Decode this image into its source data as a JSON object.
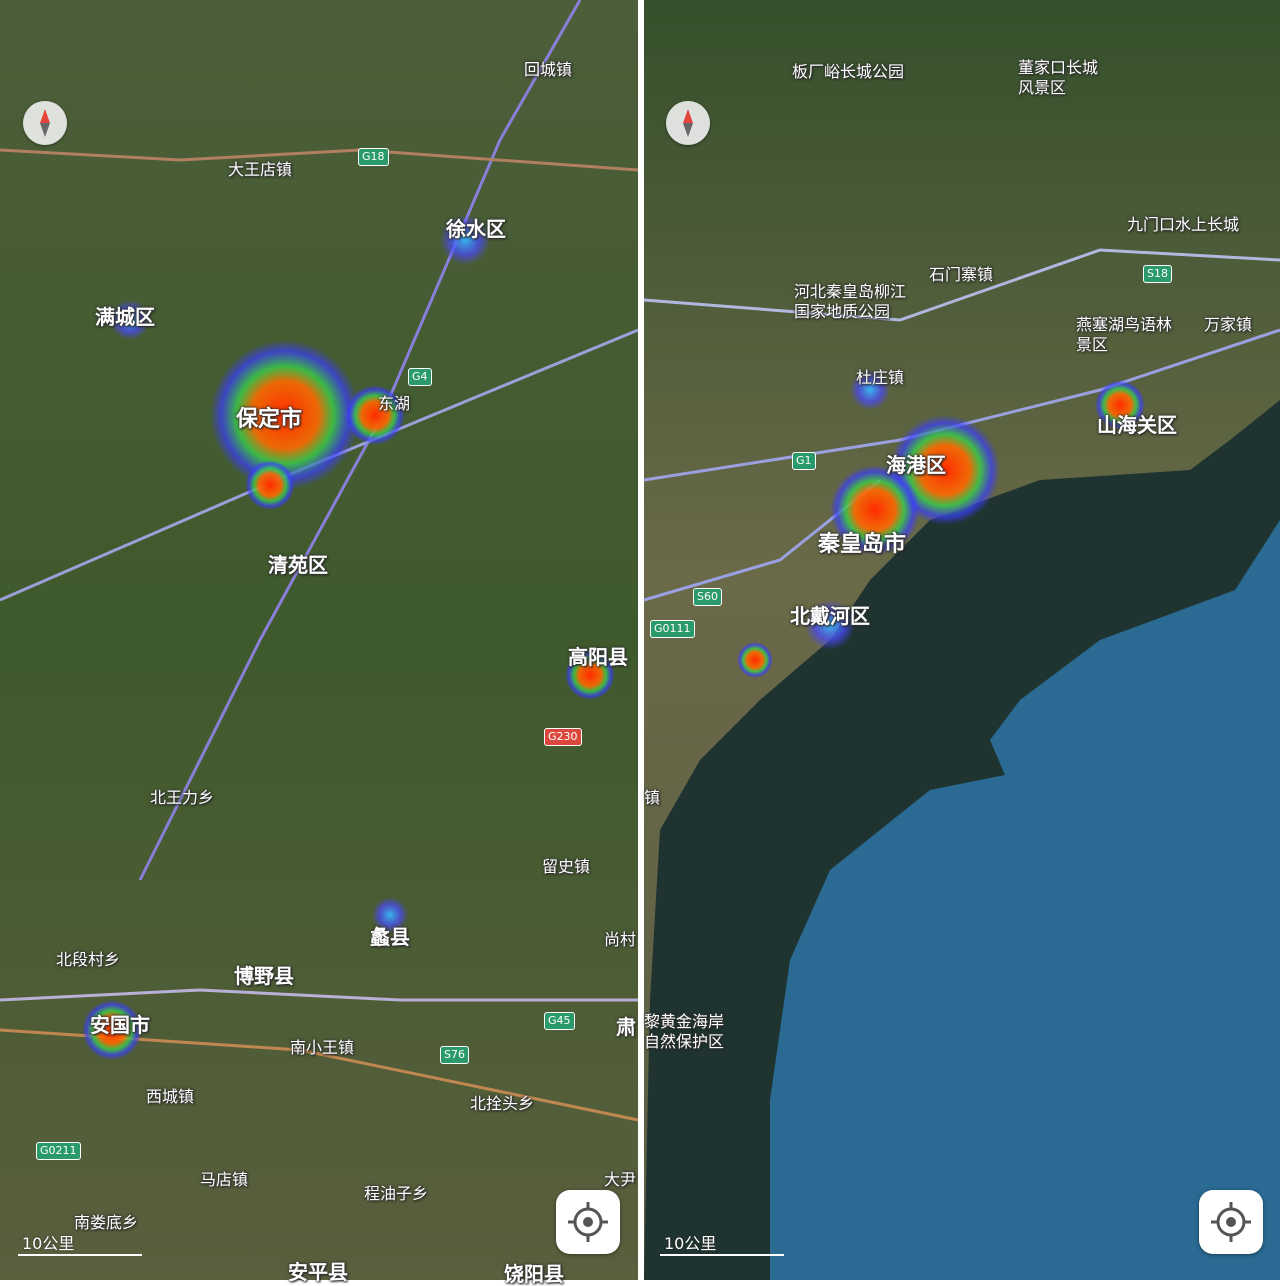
{
  "panels": [
    {
      "labels": [
        "回城镇",
        "大王店镇",
        "徐水区",
        "满城区",
        "保定市",
        "东湖",
        "清苑区",
        "高阳县",
        "北王力乡",
        "留史镇",
        "蠡县",
        "尚村",
        "北段村乡",
        "博野县",
        "安国市",
        "南小王镇",
        "西城镇",
        "北拴头乡",
        "马店镇",
        "程油子乡",
        "南娄底乡",
        "安平县",
        "饶阳县",
        "大尹",
        "肃"
      ],
      "roads": [
        "G18",
        "G4",
        "G230",
        "G45",
        "S76",
        "G0211"
      ],
      "scale": "10公里"
    },
    {
      "labels": [
        "板厂峪长城公园",
        [
          "董家口长城",
          "风景区"
        ],
        "九门口水上长城",
        "石门寨镇",
        [
          "河北秦皇岛柳江",
          "国家地质公园"
        ],
        [
          "燕塞湖鸟语林",
          "景区"
        ],
        "万家镇",
        "杜庄镇",
        "山海关区",
        "海港区",
        "秦皇岛市",
        "北戴河区",
        "镇",
        [
          "黎黄金海岸",
          "自然保护区"
        ]
      ],
      "roads": [
        "S18",
        "G1",
        "S60",
        "G0111"
      ],
      "scale": "10公里"
    }
  ]
}
